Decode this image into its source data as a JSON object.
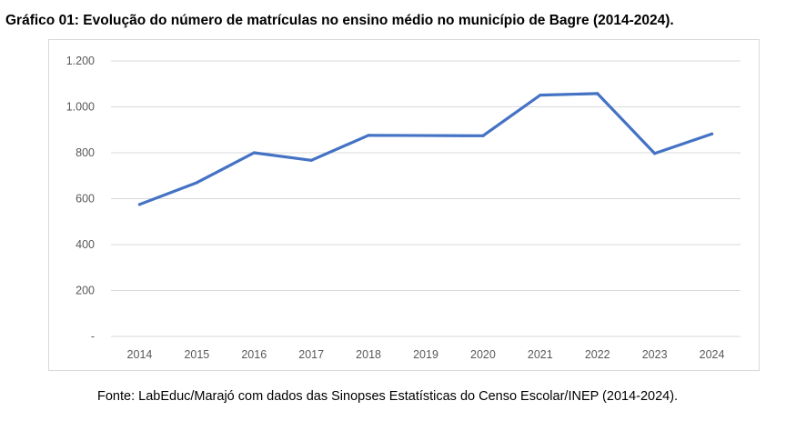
{
  "chart_data": {
    "type": "line",
    "title": "Gráfico 01: Evolução do número de matrículas no ensino médio no município de Bagre (2014-2024).",
    "categories": [
      "2014",
      "2015",
      "2016",
      "2017",
      "2018",
      "2019",
      "2020",
      "2021",
      "2022",
      "2023",
      "2024"
    ],
    "series": [
      {
        "name": "Matrículas no ensino médio",
        "values": [
          575,
          670,
          800,
          767,
          876,
          875,
          874,
          1051,
          1058,
          797,
          882
        ]
      }
    ],
    "ylim": [
      0,
      1200
    ],
    "yticks": [
      {
        "value": 0,
        "label": "-"
      },
      {
        "value": 200,
        "label": "200"
      },
      {
        "value": 400,
        "label": "400"
      },
      {
        "value": 600,
        "label": "600"
      },
      {
        "value": 800,
        "label": "800"
      },
      {
        "value": 1000,
        "label": "1.000"
      },
      {
        "value": 1200,
        "label": "1.200"
      }
    ],
    "grid": true,
    "line_color": "#4472c4",
    "grid_color": "#d9d9d9",
    "xlabel": "",
    "ylabel": ""
  },
  "source": "Fonte: LabEduc/Marajó com dados das Sinopses Estatísticas do Censo Escolar/INEP (2014-2024)."
}
